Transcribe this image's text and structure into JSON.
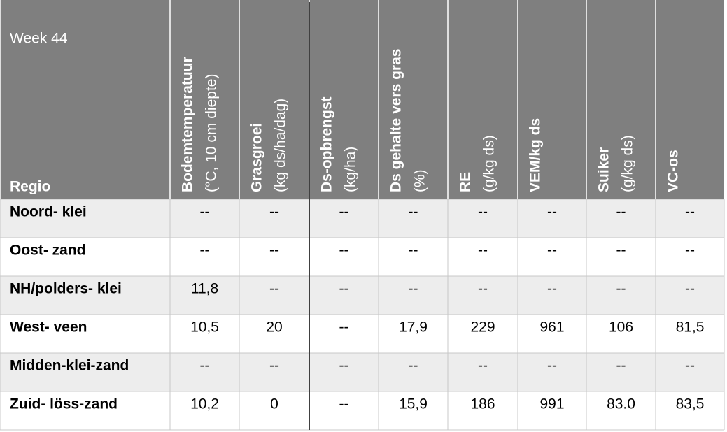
{
  "header": {
    "week": "Week 44",
    "region": "Regio",
    "columns": [
      {
        "name": "Bodemtemperatuur",
        "unit": "(°C, 10 cm diepte)"
      },
      {
        "name": "Grasgroei",
        "unit": "(kg ds/ha/dag)"
      },
      {
        "name": "Ds-opbrengst",
        "unit": "(kg/ha)"
      },
      {
        "name": "Ds gehalte vers gras",
        "unit": "(%)"
      },
      {
        "name": "RE",
        "unit": "(g/kg ds)"
      },
      {
        "name": "VEM/kg ds"
      },
      {
        "name": "Suiker",
        "unit": "(g/kg ds)"
      },
      {
        "name": "VC-os"
      }
    ]
  },
  "table": {
    "rows": [
      [
        "Noord- klei",
        "--",
        "--",
        "--",
        "--",
        "--",
        "--",
        "--",
        "--"
      ],
      [
        "Oost- zand",
        "--",
        "--",
        "--",
        "--",
        "--",
        "--",
        "--",
        "--"
      ],
      [
        "NH/polders- klei",
        "11,8",
        "--",
        "--",
        "--",
        "--",
        "--",
        "--",
        "--"
      ],
      [
        "West- veen",
        "10,5",
        "20",
        "--",
        "17,9",
        "229",
        "961",
        "106",
        "81,5"
      ],
      [
        "Midden-klei-zand",
        "--",
        "--",
        "--",
        "--",
        "--",
        "--",
        "--",
        "--"
      ],
      [
        "Zuid- löss-zand",
        "10,2",
        "0",
        "--",
        "15,9",
        "186",
        "991",
        "83.0",
        "83,5"
      ]
    ]
  }
}
